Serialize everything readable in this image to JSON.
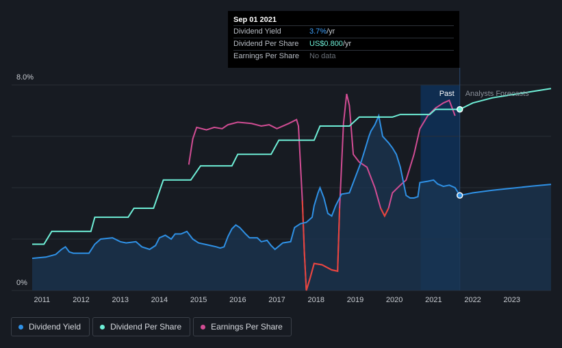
{
  "tooltip": {
    "date": "Sep 01 2021",
    "rows": [
      {
        "label": "Dividend Yield",
        "value": "3.7%",
        "suffix": " /yr"
      },
      {
        "label": "Dividend Per Share",
        "value": "US$0.800",
        "suffix": " /yr"
      },
      {
        "label": "Earnings Per Share",
        "value": "No data",
        "suffix": ""
      }
    ]
  },
  "labels": {
    "past": "Past",
    "forecast": "Analysts Forecasts"
  },
  "legend": [
    {
      "label": "Dividend Yield",
      "color": "#2f91e6"
    },
    {
      "label": "Dividend Per Share",
      "color": "#6ff0d8"
    },
    {
      "label": "Earnings Per Share",
      "color": "#d24d94"
    }
  ],
  "colors": {
    "dividend_yield": "#2f91e6",
    "dividend_per_share": "#6ff0d8",
    "earnings_per_share": "#d24d94",
    "eps_negative": "#e8453c",
    "yield_fill": "#1b3551",
    "grid": "#2a2f37",
    "highlight": "#0f2d50"
  },
  "chart_data": {
    "type": "line",
    "title": "",
    "xlabel": "",
    "ylabel": "",
    "x_ticks": [
      "2011",
      "2012",
      "2013",
      "2014",
      "2015",
      "2016",
      "2017",
      "2018",
      "2019",
      "2020",
      "2021",
      "2022",
      "2023"
    ],
    "x_range": [
      2010.75,
      2024.0
    ],
    "y_ticks": [
      "8.0%",
      "0%"
    ],
    "ylim": [
      0,
      8.0
    ],
    "grid": true,
    "tooltip_date": 2021.67,
    "past_end": 2021.67,
    "highlight_range": [
      2020.67,
      2021.67
    ],
    "series": [
      {
        "name": "Dividend Yield",
        "unit": "%",
        "points": [
          [
            2010.75,
            1.25
          ],
          [
            2011.1,
            1.3
          ],
          [
            2011.35,
            1.4
          ],
          [
            2011.5,
            1.6
          ],
          [
            2011.6,
            1.7
          ],
          [
            2011.7,
            1.5
          ],
          [
            2011.8,
            1.45
          ],
          [
            2012.2,
            1.45
          ],
          [
            2012.35,
            1.8
          ],
          [
            2012.5,
            2.0
          ],
          [
            2012.8,
            2.05
          ],
          [
            2013.0,
            1.9
          ],
          [
            2013.15,
            1.85
          ],
          [
            2013.4,
            1.9
          ],
          [
            2013.55,
            1.7
          ],
          [
            2013.75,
            1.6
          ],
          [
            2013.9,
            1.75
          ],
          [
            2014.0,
            2.05
          ],
          [
            2014.15,
            2.15
          ],
          [
            2014.3,
            2.0
          ],
          [
            2014.4,
            2.2
          ],
          [
            2014.55,
            2.2
          ],
          [
            2014.7,
            2.3
          ],
          [
            2014.85,
            2.0
          ],
          [
            2015.0,
            1.85
          ],
          [
            2015.3,
            1.75
          ],
          [
            2015.45,
            1.7
          ],
          [
            2015.55,
            1.65
          ],
          [
            2015.65,
            1.7
          ],
          [
            2015.75,
            2.1
          ],
          [
            2015.85,
            2.4
          ],
          [
            2015.95,
            2.55
          ],
          [
            2016.05,
            2.45
          ],
          [
            2016.2,
            2.2
          ],
          [
            2016.3,
            2.05
          ],
          [
            2016.5,
            2.05
          ],
          [
            2016.6,
            1.9
          ],
          [
            2016.75,
            1.95
          ],
          [
            2016.85,
            1.75
          ],
          [
            2016.95,
            1.6
          ],
          [
            2017.15,
            1.85
          ],
          [
            2017.35,
            1.9
          ],
          [
            2017.45,
            2.45
          ],
          [
            2017.6,
            2.6
          ],
          [
            2017.75,
            2.65
          ],
          [
            2017.9,
            2.85
          ],
          [
            2017.95,
            3.3
          ],
          [
            2018.05,
            3.8
          ],
          [
            2018.1,
            4.0
          ],
          [
            2018.2,
            3.6
          ],
          [
            2018.3,
            3.0
          ],
          [
            2018.4,
            2.9
          ],
          [
            2018.5,
            3.3
          ],
          [
            2018.65,
            3.75
          ],
          [
            2018.85,
            3.8
          ],
          [
            2018.95,
            4.2
          ],
          [
            2019.05,
            4.6
          ],
          [
            2019.15,
            5.0
          ],
          [
            2019.25,
            5.5
          ],
          [
            2019.35,
            6.0
          ],
          [
            2019.4,
            6.2
          ],
          [
            2019.5,
            6.45
          ],
          [
            2019.6,
            6.8
          ],
          [
            2019.7,
            6.0
          ],
          [
            2019.85,
            5.75
          ],
          [
            2019.95,
            5.55
          ],
          [
            2020.05,
            5.3
          ],
          [
            2020.15,
            4.8
          ],
          [
            2020.3,
            3.7
          ],
          [
            2020.4,
            3.6
          ],
          [
            2020.5,
            3.6
          ],
          [
            2020.6,
            3.65
          ],
          [
            2020.65,
            4.2
          ],
          [
            2020.85,
            4.25
          ],
          [
            2021.0,
            4.3
          ],
          [
            2021.1,
            4.15
          ],
          [
            2021.25,
            4.05
          ],
          [
            2021.4,
            4.1
          ],
          [
            2021.55,
            4.0
          ],
          [
            2021.67,
            3.7
          ],
          [
            2022.0,
            3.8
          ],
          [
            2022.5,
            3.9
          ],
          [
            2023.0,
            3.98
          ],
          [
            2023.5,
            4.06
          ],
          [
            2024.0,
            4.13
          ]
        ]
      },
      {
        "name": "Dividend Per Share",
        "points": [
          [
            2010.75,
            1.8
          ],
          [
            2011.05,
            1.8
          ],
          [
            2011.25,
            2.3
          ],
          [
            2011.85,
            2.3
          ],
          [
            2012.25,
            2.3
          ],
          [
            2012.35,
            2.85
          ],
          [
            2013.2,
            2.85
          ],
          [
            2013.35,
            3.2
          ],
          [
            2013.85,
            3.2
          ],
          [
            2014.1,
            4.3
          ],
          [
            2014.8,
            4.3
          ],
          [
            2015.05,
            4.85
          ],
          [
            2015.85,
            4.85
          ],
          [
            2016.0,
            5.3
          ],
          [
            2016.85,
            5.3
          ],
          [
            2017.05,
            5.85
          ],
          [
            2017.95,
            5.85
          ],
          [
            2018.1,
            6.4
          ],
          [
            2018.85,
            6.4
          ],
          [
            2019.1,
            6.75
          ],
          [
            2019.95,
            6.75
          ],
          [
            2020.15,
            6.85
          ],
          [
            2020.9,
            6.85
          ],
          [
            2021.05,
            7.05
          ],
          [
            2021.67,
            7.05
          ],
          [
            2022.0,
            7.3
          ],
          [
            2022.5,
            7.5
          ],
          [
            2023.0,
            7.62
          ],
          [
            2023.5,
            7.74
          ],
          [
            2024.0,
            7.86
          ]
        ]
      },
      {
        "name": "Earnings Per Share",
        "points": [
          [
            2014.75,
            4.9
          ],
          [
            2014.85,
            5.9
          ],
          [
            2014.95,
            6.35
          ],
          [
            2015.2,
            6.25
          ],
          [
            2015.4,
            6.35
          ],
          [
            2015.6,
            6.3
          ],
          [
            2015.75,
            6.45
          ],
          [
            2016.0,
            6.55
          ],
          [
            2016.35,
            6.5
          ],
          [
            2016.6,
            6.4
          ],
          [
            2016.8,
            6.45
          ],
          [
            2017.0,
            6.3
          ],
          [
            2017.3,
            6.5
          ],
          [
            2017.5,
            6.65
          ],
          [
            2017.55,
            6.4
          ],
          [
            2017.65,
            3.5
          ],
          [
            2017.7,
            1.5
          ],
          [
            2017.75,
            0.0
          ],
          [
            2017.85,
            0.5
          ],
          [
            2017.95,
            1.05
          ],
          [
            2018.15,
            1.0
          ],
          [
            2018.4,
            0.8
          ],
          [
            2018.55,
            0.75
          ],
          [
            2018.6,
            3.2
          ],
          [
            2018.7,
            6.5
          ],
          [
            2018.78,
            7.65
          ],
          [
            2018.85,
            7.2
          ],
          [
            2018.95,
            5.3
          ],
          [
            2019.1,
            5.0
          ],
          [
            2019.3,
            4.8
          ],
          [
            2019.5,
            4.0
          ],
          [
            2019.65,
            3.2
          ],
          [
            2019.75,
            2.9
          ],
          [
            2019.85,
            3.2
          ],
          [
            2019.95,
            3.8
          ],
          [
            2020.15,
            4.1
          ],
          [
            2020.3,
            4.3
          ],
          [
            2020.5,
            5.3
          ],
          [
            2020.65,
            6.3
          ],
          [
            2020.85,
            6.8
          ],
          [
            2021.05,
            7.1
          ],
          [
            2021.25,
            7.3
          ],
          [
            2021.4,
            7.4
          ],
          [
            2021.5,
            7.0
          ],
          [
            2021.55,
            6.8
          ]
        ]
      }
    ]
  }
}
